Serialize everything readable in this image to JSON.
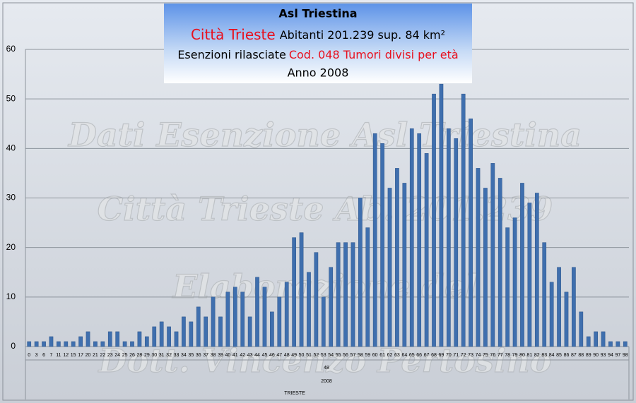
{
  "chart_data": {
    "type": "bar",
    "title": "Asl Triestina",
    "subtitle_city": "Città Trieste",
    "subtitle_info": "Abitanti 201.239  sup. 84 km²",
    "description_label": "Esenzioni rilasciate",
    "description_code": "Cod. 048 Tumori divisi per età",
    "year_title": "Anno 2008",
    "x_group_labels": [
      "48",
      "2008",
      "TRIESTE"
    ],
    "watermarks": [
      "Dati Esenzione Asl Triestina",
      "Città Trieste  Ab. 201.239",
      "Elaborazione del",
      "Dott. Vincenzo Pertosino"
    ],
    "categories": [
      "0",
      "3",
      "6",
      "7",
      "11",
      "12",
      "15",
      "17",
      "20",
      "21",
      "22",
      "23",
      "24",
      "25",
      "26",
      "28",
      "29",
      "30",
      "31",
      "32",
      "33",
      "34",
      "35",
      "36",
      "37",
      "38",
      "39",
      "40",
      "41",
      "42",
      "43",
      "44",
      "45",
      "46",
      "47",
      "48",
      "49",
      "50",
      "51",
      "52",
      "53",
      "54",
      "55",
      "56",
      "57",
      "58",
      "59",
      "60",
      "61",
      "62",
      "63",
      "64",
      "65",
      "66",
      "67",
      "68",
      "69",
      "70",
      "71",
      "72",
      "73",
      "74",
      "75",
      "76",
      "77",
      "78",
      "79",
      "80",
      "81",
      "82",
      "83",
      "84",
      "85",
      "86",
      "87",
      "88",
      "89",
      "90",
      "93",
      "94",
      "97",
      "98"
    ],
    "values": [
      1,
      1,
      1,
      2,
      1,
      1,
      1,
      2,
      3,
      1,
      1,
      3,
      3,
      1,
      1,
      3,
      2,
      4,
      5,
      4,
      3,
      6,
      5,
      8,
      6,
      10,
      6,
      11,
      12,
      11,
      6,
      14,
      12,
      7,
      10,
      13,
      22,
      23,
      15,
      19,
      10,
      16,
      21,
      21,
      21,
      30,
      24,
      43,
      41,
      32,
      36,
      33,
      44,
      43,
      39,
      51,
      53,
      44,
      42,
      51,
      46,
      36,
      32,
      37,
      34,
      24,
      26,
      33,
      29,
      31,
      21,
      13,
      16,
      11,
      16,
      7,
      2,
      3,
      3,
      1,
      1,
      1
    ],
    "color": "#3f6fae",
    "ylim": [
      0,
      60
    ],
    "yticks": [
      0,
      10,
      20,
      30,
      40,
      50,
      60
    ],
    "grid": true
  }
}
